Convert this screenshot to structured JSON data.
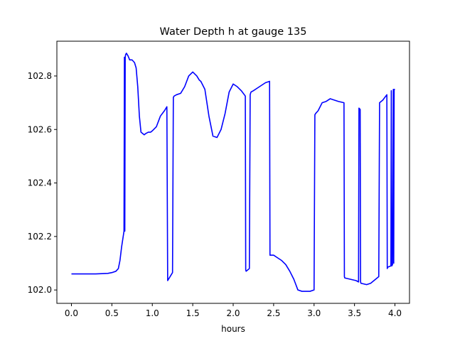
{
  "chart_data": {
    "type": "line",
    "title": "Water Depth h at gauge 135",
    "xlabel": "hours",
    "ylabel": "",
    "xlim": [
      -0.18,
      4.18
    ],
    "ylim": [
      101.95,
      102.93
    ],
    "xticks": [
      0.0,
      0.5,
      1.0,
      1.5,
      2.0,
      2.5,
      3.0,
      3.5,
      4.0
    ],
    "xtick_labels": [
      "0.0",
      "0.5",
      "1.0",
      "1.5",
      "2.0",
      "2.5",
      "3.0",
      "3.5",
      "4.0"
    ],
    "yticks": [
      102.0,
      102.2,
      102.4,
      102.6,
      102.8
    ],
    "ytick_labels": [
      "102.0",
      "102.2",
      "102.4",
      "102.6",
      "102.8"
    ],
    "grid": false,
    "legend": "none",
    "series": [
      {
        "color": "#0000ff",
        "x": [
          0.0,
          0.3,
          0.45,
          0.5,
          0.55,
          0.58,
          0.6,
          0.62,
          0.64,
          0.65,
          0.655,
          0.66,
          0.665,
          0.67,
          0.68,
          0.7,
          0.72,
          0.75,
          0.78,
          0.8,
          0.82,
          0.84,
          0.86,
          0.88,
          0.9,
          0.92,
          0.95,
          0.98,
          1.0,
          1.05,
          1.1,
          1.15,
          1.18,
          1.19,
          1.2,
          1.22,
          1.25,
          1.26,
          1.27,
          1.3,
          1.35,
          1.4,
          1.45,
          1.5,
          1.55,
          1.58,
          1.6,
          1.65,
          1.7,
          1.75,
          1.8,
          1.85,
          1.9,
          1.95,
          2.0,
          2.05,
          2.1,
          2.15,
          2.155,
          2.16,
          2.2,
          2.21,
          2.22,
          2.25,
          2.3,
          2.35,
          2.4,
          2.45,
          2.455,
          2.46,
          2.5,
          2.55,
          2.6,
          2.65,
          2.7,
          2.75,
          2.8,
          2.85,
          2.9,
          2.95,
          3.0,
          3.01,
          3.02,
          3.05,
          3.1,
          3.15,
          3.2,
          3.25,
          3.3,
          3.37,
          3.375,
          3.38,
          3.45,
          3.52,
          3.55,
          3.555,
          3.57,
          3.575,
          3.58,
          3.65,
          3.7,
          3.8,
          3.81,
          3.85,
          3.9,
          3.905,
          3.91,
          3.95,
          3.955,
          3.96,
          3.97,
          3.98,
          3.985,
          3.99,
          4.0
        ],
        "y": [
          102.06,
          102.06,
          102.062,
          102.065,
          102.07,
          102.08,
          102.11,
          102.16,
          102.2,
          102.22,
          102.87,
          102.22,
          102.87,
          102.88,
          102.885,
          102.875,
          102.86,
          102.86,
          102.85,
          102.83,
          102.76,
          102.65,
          102.59,
          102.585,
          102.58,
          102.585,
          102.59,
          102.59,
          102.595,
          102.61,
          102.65,
          102.67,
          102.685,
          102.035,
          102.04,
          102.05,
          102.065,
          102.72,
          102.725,
          102.73,
          102.735,
          102.76,
          102.8,
          102.815,
          102.8,
          102.785,
          102.78,
          102.75,
          102.65,
          102.575,
          102.57,
          102.6,
          102.66,
          102.74,
          102.77,
          102.76,
          102.745,
          102.725,
          102.075,
          102.07,
          102.08,
          102.73,
          102.74,
          102.745,
          102.755,
          102.765,
          102.775,
          102.78,
          102.13,
          102.13,
          102.13,
          102.12,
          102.11,
          102.095,
          102.07,
          102.04,
          102.0,
          101.995,
          101.995,
          101.995,
          102.0,
          102.655,
          102.66,
          102.67,
          102.7,
          102.705,
          102.715,
          102.71,
          102.705,
          102.7,
          102.05,
          102.045,
          102.04,
          102.035,
          102.03,
          102.68,
          102.675,
          102.03,
          102.025,
          102.02,
          102.025,
          102.05,
          102.7,
          102.71,
          102.73,
          102.08,
          102.085,
          102.09,
          102.745,
          102.09,
          102.095,
          102.75,
          102.1,
          102.75,
          102.75
        ]
      }
    ]
  }
}
